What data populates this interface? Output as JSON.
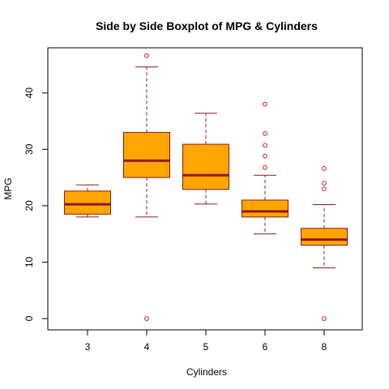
{
  "chart_data": {
    "type": "boxplot",
    "title": "Side by Side Boxplot of MPG & Cylinders",
    "xlabel": "Cylinders",
    "ylabel": "MPG",
    "ylim": [
      -2,
      48
    ],
    "yticks": [
      0,
      10,
      20,
      30,
      40
    ],
    "grid": false,
    "colors": {
      "box_fill": "#FFA500",
      "box_border": "#8B1A1A",
      "median": "#8B1A1A",
      "outlier": "#B22222"
    },
    "categories": [
      "3",
      "4",
      "5",
      "6",
      "8"
    ],
    "boxes": [
      {
        "category": "3",
        "lower_whisker": 18.0,
        "q1": 18.5,
        "median": 20.25,
        "q3": 22.6,
        "upper_whisker": 23.7,
        "outliers": []
      },
      {
        "category": "4",
        "lower_whisker": 18.0,
        "q1": 25.0,
        "median": 28.0,
        "q3": 33.0,
        "upper_whisker": 44.6,
        "outliers": [
          46.6,
          0
        ]
      },
      {
        "category": "5",
        "lower_whisker": 20.3,
        "q1": 22.9,
        "median": 25.4,
        "q3": 30.9,
        "upper_whisker": 36.4,
        "outliers": []
      },
      {
        "category": "6",
        "lower_whisker": 15.0,
        "q1": 18.0,
        "median": 19.0,
        "q3": 21.0,
        "upper_whisker": 25.4,
        "outliers": [
          38.0,
          32.8,
          30.7,
          28.8,
          26.8
        ]
      },
      {
        "category": "8",
        "lower_whisker": 9.0,
        "q1": 13.0,
        "median": 14.0,
        "q3": 16.0,
        "upper_whisker": 20.2,
        "outliers": [
          26.6,
          24.0,
          23.0,
          0
        ]
      }
    ]
  }
}
